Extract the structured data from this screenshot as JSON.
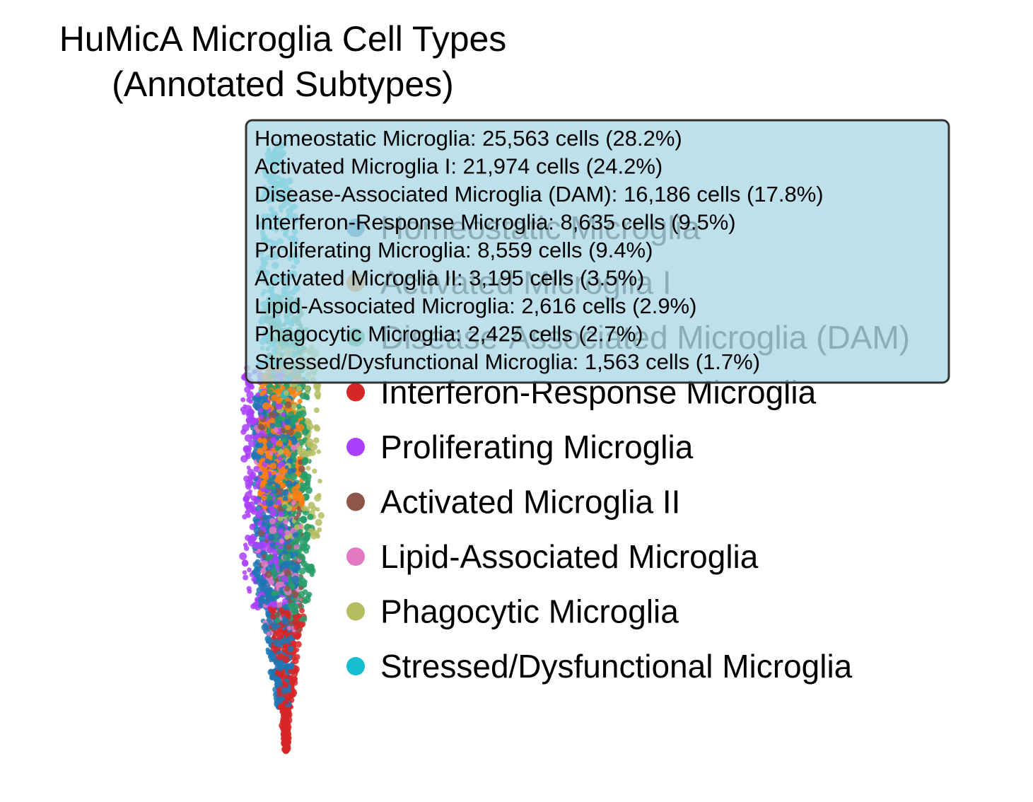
{
  "chart_data": {
    "type": "scatter",
    "title_lines": [
      "HuMicA Microglia Cell Types",
      "(Annotated Subtypes)"
    ],
    "xlabel": "",
    "ylabel": "",
    "axes_visible": false,
    "grid": false,
    "legend_position": "right",
    "series": [
      {
        "name": "Homeostatic Microglia",
        "color": "#1f77b4"
      },
      {
        "name": "Activated Microglia I",
        "color": "#ff7f0e"
      },
      {
        "name": "Disease-Associated Microglia (DAM)",
        "color": "#279e68"
      },
      {
        "name": "Interferon-Response Microglia",
        "color": "#d62728"
      },
      {
        "name": "Proliferating Microglia",
        "color": "#aa40fc"
      },
      {
        "name": "Activated Microglia II",
        "color": "#8c564b"
      },
      {
        "name": "Lipid-Associated Microglia",
        "color": "#e377c2"
      },
      {
        "name": "Phagocytic Microglia",
        "color": "#b5bd61"
      },
      {
        "name": "Stressed/Dysfunctional Microglia",
        "color": "#17becf"
      }
    ],
    "stats_box": {
      "background": "#add8e6",
      "lines": [
        "Homeostatic Microglia: 25,563 cells (28.2%)",
        "Activated Microglia I: 21,974 cells (24.2%)",
        "Disease-Associated Microglia (DAM): 16,186 cells (17.8%)",
        "Interferon-Response Microglia: 8,635 cells (9.5%)",
        "Proliferating Microglia: 8,559 cells (9.4%)",
        "Activated Microglia II: 3,195 cells (3.5%)",
        "Lipid-Associated Microglia: 2,616 cells (2.9%)",
        "Phagocytic Microglia: 2,425 cells (2.7%)",
        "Stressed/Dysfunctional Microglia: 1,563 cells (1.7%)"
      ]
    }
  }
}
